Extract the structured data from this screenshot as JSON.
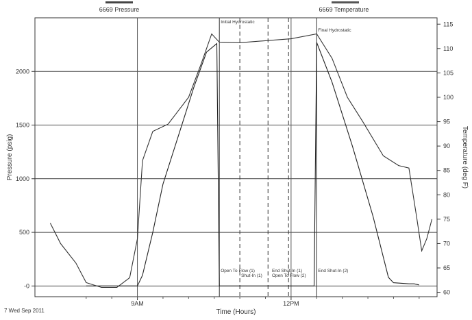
{
  "chart_data": {
    "type": "line",
    "legend": {
      "pressure": "6669 Pressure",
      "temperature": "6669 Temperature"
    },
    "xlabel": "Time (Hours)",
    "ylabel_left": "Pressure (psig)",
    "ylabel_right": "Temperature (deg F)",
    "date_label": "7 Wed Sep 2011",
    "x_unit": "hours (clock time)",
    "xlim": [
      7.0,
      14.85
    ],
    "x_ticks": [
      {
        "x": 9,
        "label": "9AM"
      },
      {
        "x": 12,
        "label": "12PM"
      }
    ],
    "ylim_left": [
      -100,
      2500
    ],
    "ylim_right": [
      59.1,
      116.3
    ],
    "y_ticks_left": [
      {
        "v": 0,
        "label": "-0"
      },
      {
        "v": 500,
        "label": "500"
      },
      {
        "v": 1000,
        "label": "1000"
      },
      {
        "v": 1500,
        "label": "1500"
      },
      {
        "v": 2000,
        "label": "2000"
      }
    ],
    "y_ticks_right": [
      60,
      65,
      70,
      75,
      80,
      85,
      90,
      95,
      100,
      105,
      110,
      115
    ],
    "series": [
      {
        "name": "6669 Pressure",
        "axis": "left",
        "color": "#222222",
        "x": [
          8.0,
          8.8,
          9.0,
          9.1,
          9.3,
          9.5,
          9.8,
          10.1,
          10.35,
          10.55,
          10.6,
          12.45,
          12.5,
          12.8,
          13.2,
          13.6,
          13.9,
          14.0,
          14.3,
          14.4,
          14.5
        ],
        "y": [
          0,
          0,
          0,
          100,
          500,
          950,
          1400,
          1850,
          2180,
          2260,
          0,
          0,
          2270,
          1900,
          1300,
          650,
          80,
          30,
          20,
          20,
          10
        ]
      },
      {
        "name": "6669 Temperature",
        "axis": "right",
        "color": "#333333",
        "x": [
          7.3,
          7.5,
          7.8,
          8.0,
          8.3,
          8.6,
          8.85,
          9.0,
          9.1,
          9.3,
          9.6,
          10.0,
          10.25,
          10.45,
          10.6,
          11.0,
          11.5,
          12.0,
          12.5,
          12.8,
          13.1,
          13.4,
          13.8,
          14.1,
          14.3,
          14.45,
          14.55,
          14.65,
          14.75
        ],
        "y": [
          74.2,
          70,
          66,
          62,
          61,
          61,
          63,
          71,
          87,
          93,
          94.5,
          100,
          107,
          113,
          111.3,
          111.2,
          111.6,
          112,
          113,
          108,
          100,
          95,
          88,
          86,
          85.5,
          75.5,
          68.5,
          71,
          75
        ]
      }
    ],
    "annotations": [
      {
        "x": 10.6,
        "text": "Initial Hydrostatic"
      },
      {
        "x": 12.5,
        "text": "Final Hydrostatic"
      },
      {
        "x": 10.6,
        "text": "Open To Flow (1)"
      },
      {
        "x": 11.0,
        "text": "Shut-In (1)"
      },
      {
        "x": 11.6,
        "text": "End Shut-In (1)"
      },
      {
        "x": 11.6,
        "text": "Open To Flow (2)"
      },
      {
        "x": 12.5,
        "text": "End Shut-In (2)"
      }
    ],
    "grid": true
  }
}
